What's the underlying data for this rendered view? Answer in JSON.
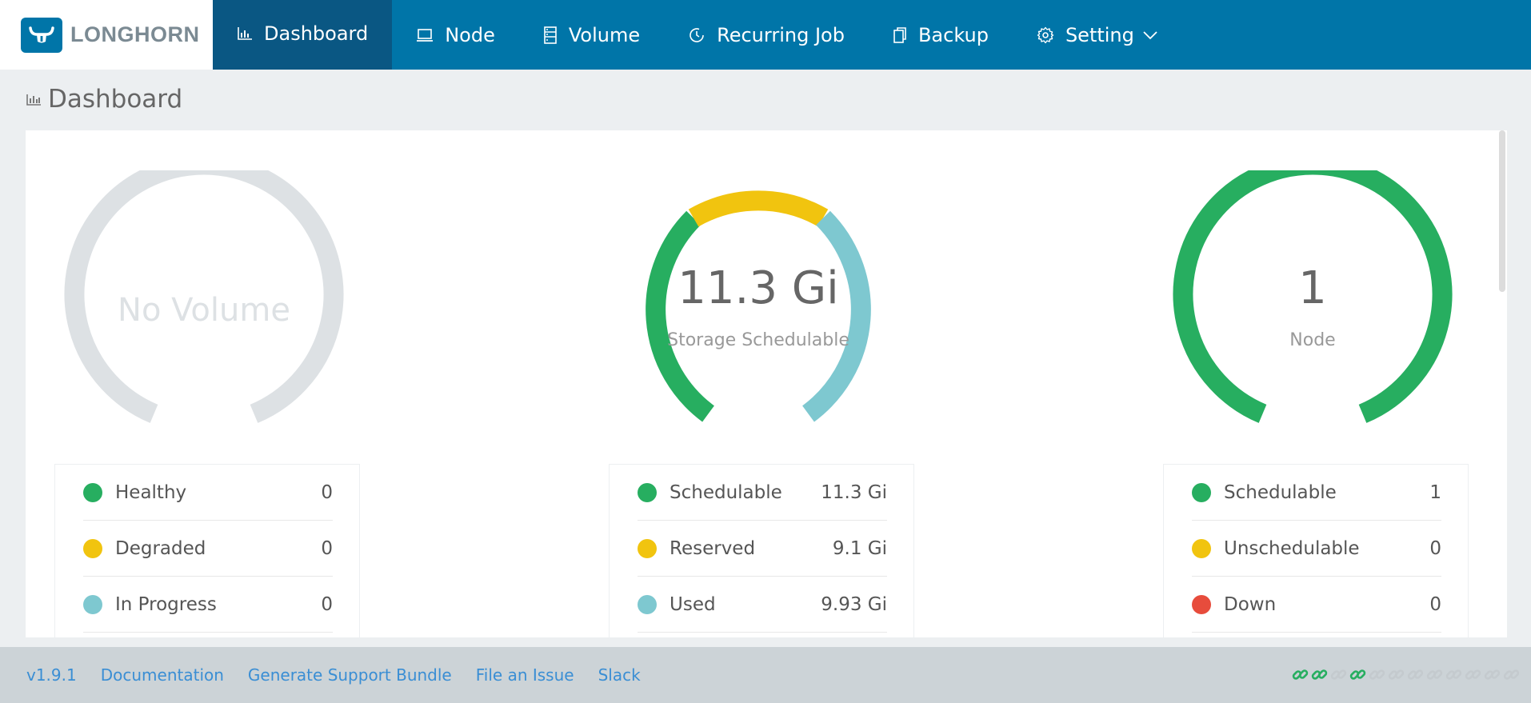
{
  "brand": {
    "name": "LONGHORN"
  },
  "nav": [
    {
      "label": "Dashboard",
      "icon": "bar-chart-icon",
      "active": true
    },
    {
      "label": "Node",
      "icon": "laptop-icon"
    },
    {
      "label": "Volume",
      "icon": "server-icon"
    },
    {
      "label": "Recurring Job",
      "icon": "clock-icon"
    },
    {
      "label": "Backup",
      "icon": "copy-icon"
    },
    {
      "label": "Setting",
      "icon": "gear-icon",
      "dropdown": true
    }
  ],
  "page": {
    "title": "Dashboard"
  },
  "volume": {
    "empty_label": "No Volume",
    "legend": [
      {
        "label": "Healthy",
        "value": "0",
        "color": "#27ae60"
      },
      {
        "label": "Degraded",
        "value": "0",
        "color": "#f1c40f"
      },
      {
        "label": "In Progress",
        "value": "0",
        "color": "#7ec8d0"
      }
    ]
  },
  "storage": {
    "value": "11.3 Gi",
    "subtitle": "Storage Schedulable",
    "legend": [
      {
        "label": "Schedulable",
        "value": "11.3 Gi",
        "color": "#27ae60"
      },
      {
        "label": "Reserved",
        "value": "9.1 Gi",
        "color": "#f1c40f"
      },
      {
        "label": "Used",
        "value": "9.93 Gi",
        "color": "#7ec8d0"
      }
    ]
  },
  "node": {
    "value": "1",
    "subtitle": "Node",
    "legend": [
      {
        "label": "Schedulable",
        "value": "1",
        "color": "#27ae60"
      },
      {
        "label": "Unschedulable",
        "value": "0",
        "color": "#f1c40f"
      },
      {
        "label": "Down",
        "value": "0",
        "color": "#e74c3c"
      }
    ]
  },
  "footer": {
    "version": "v1.9.1",
    "links": [
      "Documentation",
      "Generate Support Bundle",
      "File an Issue",
      "Slack"
    ],
    "connection_status": [
      true,
      true,
      false,
      true,
      false,
      false,
      false,
      false,
      false,
      false,
      false,
      false
    ]
  }
}
